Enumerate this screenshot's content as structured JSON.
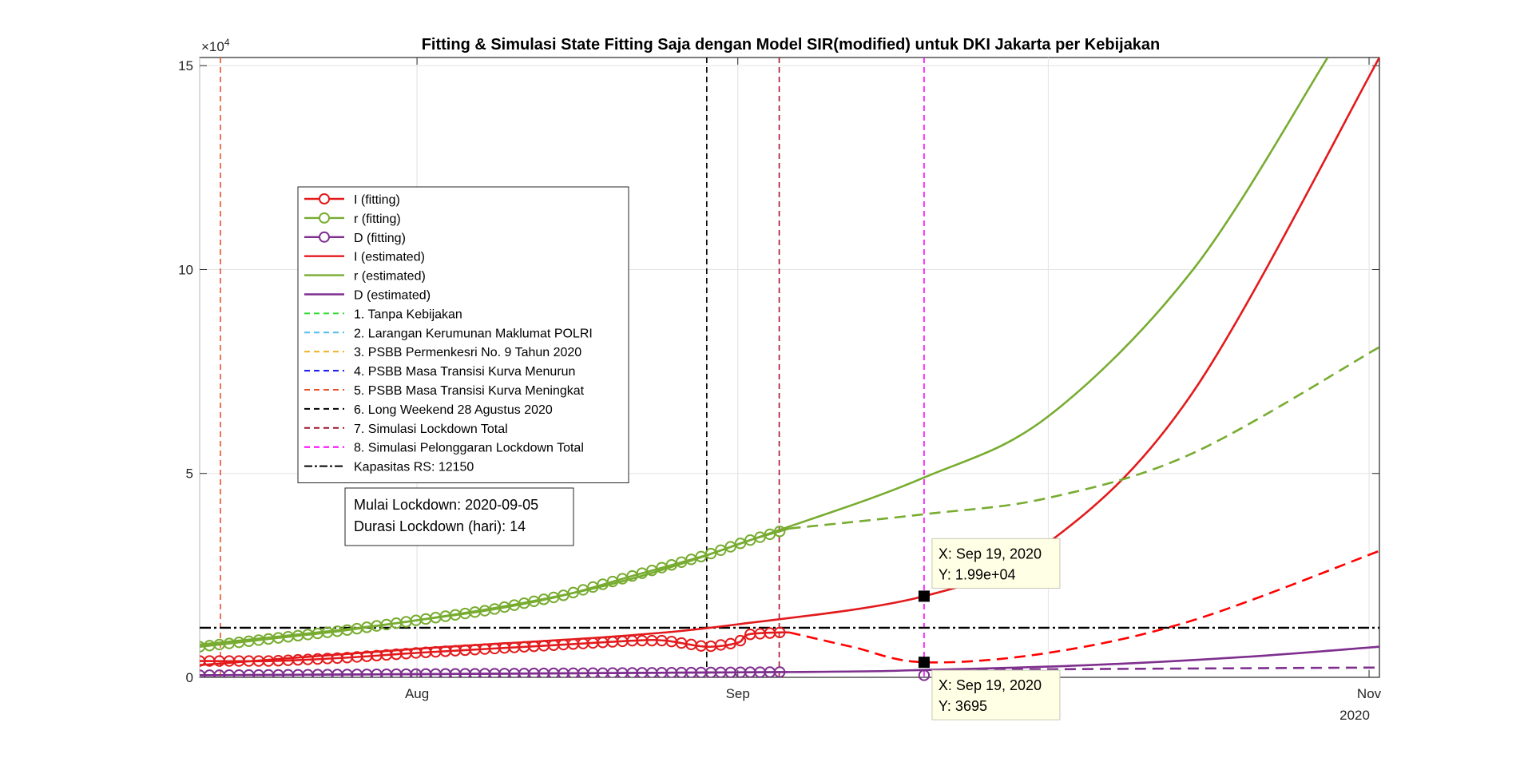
{
  "chart_data": {
    "type": "line",
    "title": "Fitting & Simulasi State Fitting Saja dengan Model SIR(modified) untuk DKI Jakarta per Kebijakan",
    "xlabel": "",
    "ylabel": "",
    "x_range": [
      "2020-07-11",
      "2020-11-02"
    ],
    "x_ticks": [
      {
        "date": "2020-08-01",
        "label": "Aug"
      },
      {
        "date": "2020-09-01",
        "label": "Sep"
      },
      {
        "date": "2020-11-01",
        "label": "Nov"
      }
    ],
    "x_year_label": "2020",
    "ylim": [
      0,
      152000
    ],
    "y_ticks": [
      {
        "value": 0,
        "label": "0"
      },
      {
        "value": 50000,
        "label": "5"
      },
      {
        "value": 100000,
        "label": "10"
      },
      {
        "value": 150000,
        "label": "15"
      }
    ],
    "y_exponent_label": "×10",
    "y_exponent_power": "4",
    "grid": true,
    "legend_position": "upper-left",
    "colors": {
      "red": "#e31a1c",
      "green": "#77ac30",
      "purple": "#7e2f8e",
      "sim_red": "#ff0000",
      "sim_green": "#77ac30",
      "sim_purple": "#7e2f8e"
    },
    "series": [
      {
        "name": "I (fitting)",
        "style": "line-circle",
        "color": "#e31a1c",
        "x_start": "2020-07-11",
        "x_end": "2020-09-06",
        "x": [
          0,
          7,
          14,
          21,
          28,
          35,
          42,
          45,
          49,
          52,
          53,
          56,
          57
        ],
        "y": [
          4000,
          4000,
          4800,
          6000,
          7000,
          8000,
          9000,
          9000,
          7500,
          8500,
          10500,
          11000,
          11000
        ]
      },
      {
        "name": "r (fitting)",
        "style": "line-circle",
        "color": "#77ac30",
        "x_start": "2020-07-11",
        "x_end": "2020-09-06",
        "x": [
          0,
          7,
          14,
          21,
          28,
          35,
          42,
          49,
          53,
          57
        ],
        "y": [
          7500,
          9500,
          11500,
          14000,
          16500,
          20000,
          25000,
          30000,
          33500,
          36500
        ]
      },
      {
        "name": "D (fitting)",
        "style": "line-circle",
        "color": "#7e2f8e",
        "x_start": "2020-07-11",
        "x_end": "2020-09-06",
        "x": [
          0,
          57
        ],
        "y": [
          500,
          1300
        ]
      },
      {
        "name": "I (estimated)",
        "style": "line",
        "color": "#e31a1c",
        "x": [
          "2020-07-11",
          "2020-08-01",
          "2020-08-20",
          "2020-09-01",
          "2020-09-19",
          "2020-10-01",
          "2020-10-15",
          "2020-11-02"
        ],
        "y": [
          3000,
          7000,
          10000,
          13000,
          19900,
          33000,
          70000,
          152000
        ]
      },
      {
        "name": "r (estimated)",
        "style": "line",
        "color": "#77ac30",
        "x": [
          "2020-07-11",
          "2020-08-01",
          "2020-08-20",
          "2020-09-06",
          "2020-09-19",
          "2020-10-01",
          "2020-10-15",
          "2020-10-28"
        ],
        "y": [
          8000,
          14000,
          23000,
          37000,
          49000,
          64000,
          100000,
          152000
        ]
      },
      {
        "name": "D (estimated)",
        "style": "line",
        "color": "#7e2f8e",
        "x": [
          "2020-07-11",
          "2020-09-06",
          "2020-09-19",
          "2020-10-05",
          "2020-10-20",
          "2020-11-02"
        ],
        "y": [
          500,
          1300,
          1800,
          3000,
          5000,
          7500
        ]
      },
      {
        "name": "1. Tanpa Kebijakan",
        "style": "dashed",
        "color": "#33dd33",
        "vline_date": null
      },
      {
        "name": "2. Larangan Kerumunan Maklumat POLRI",
        "style": "dashed",
        "color": "#4dbeee",
        "vline_date": null
      },
      {
        "name": "3. PSBB Permenkesri No. 9 Tahun 2020",
        "style": "dashed",
        "color": "#edb120",
        "vline_date": null
      },
      {
        "name": "4. PSBB Masa Transisi Kurva Menurun",
        "style": "dashed",
        "color": "#1010ee",
        "vline_date": null
      },
      {
        "name": "5. PSBB Masa Transisi Kurva Meningkat",
        "style": "dashed",
        "color": "#e8532c",
        "vline_date": "2020-07-13"
      },
      {
        "name": "6. Long Weekend 28 Agustus 2020",
        "style": "dashed",
        "color": "#000000",
        "vline_date": "2020-08-29"
      },
      {
        "name": "7. Simulasi Lockdown Total",
        "style": "dashed",
        "color": "#a2142f",
        "vline_date": "2020-09-05"
      },
      {
        "name": "8. Simulasi Pelonggaran Lockdown Total",
        "style": "dashed",
        "color": "#ff00ff",
        "vline_date": "2020-09-19"
      },
      {
        "name": "Kapasitas RS: 12150",
        "style": "dash-dot",
        "color": "#000000",
        "hline_value": 12150
      }
    ],
    "simulation": {
      "r_sim": {
        "x": [
          "2020-09-06",
          "2020-09-19",
          "2020-10-01",
          "2020-10-15",
          "2020-11-02"
        ],
        "y": [
          36500,
          40000,
          44000,
          55000,
          81000
        ]
      },
      "i_sim": {
        "x": [
          "2020-09-06",
          "2020-09-12",
          "2020-09-19",
          "2020-10-01",
          "2020-10-15",
          "2020-11-02"
        ],
        "y": [
          11000,
          7500,
          3700,
          6000,
          14000,
          31000
        ]
      },
      "d_sim": {
        "x": [
          "2020-09-19",
          "2020-10-10",
          "2020-11-02"
        ],
        "y": [
          1800,
          2100,
          2400
        ]
      }
    },
    "annotations": {
      "lockdown_box": [
        "Mulai Lockdown: 2020-09-05",
        "Durasi Lockdown (hari): 14"
      ],
      "datatips": [
        {
          "date": "2020-09-19",
          "value": 19900,
          "lines": [
            "X: Sep 19, 2020",
            "Y: 1.99e+04"
          ],
          "placement": "above"
        },
        {
          "date": "2020-09-19",
          "value": 3695,
          "lines": [
            "X: Sep 19, 2020",
            "Y: 3695"
          ],
          "placement": "below"
        }
      ]
    }
  }
}
